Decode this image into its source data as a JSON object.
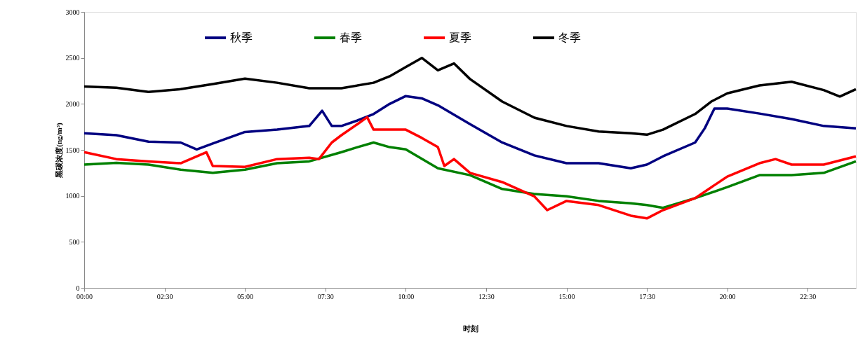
{
  "chart_data": {
    "type": "line",
    "xlabel": "时刻",
    "ylabel": "黑碳浓度(ng/m³)",
    "xlim": [
      0,
      24
    ],
    "ylim": [
      0,
      3000
    ],
    "xticks": [
      {
        "value": 0,
        "label": "00:00"
      },
      {
        "value": 2.5,
        "label": "02:30"
      },
      {
        "value": 5,
        "label": "05:00"
      },
      {
        "value": 7.5,
        "label": "07:30"
      },
      {
        "value": 10,
        "label": "10:00"
      },
      {
        "value": 12.5,
        "label": "12:30"
      },
      {
        "value": 15,
        "label": "15:00"
      },
      {
        "value": 17.5,
        "label": "17:30"
      },
      {
        "value": 20,
        "label": "20:00"
      },
      {
        "value": 22.5,
        "label": "22:30"
      }
    ],
    "yticks": [
      0,
      500,
      1000,
      1500,
      2000,
      2500,
      3000
    ],
    "grid": false,
    "legend": "top",
    "line_style": "solid",
    "marker": "none",
    "series": [
      {
        "name": "秋季",
        "color": "#000080",
        "x": [
          0,
          1,
          2,
          3,
          3.5,
          4,
          5,
          6,
          7,
          7.4,
          7.7,
          8,
          8.5,
          9,
          9.5,
          10,
          10.5,
          11,
          12,
          13,
          14,
          15,
          16,
          17,
          17.5,
          18,
          19,
          19.3,
          19.6,
          20,
          21,
          22,
          23,
          24
        ],
        "values": [
          1680,
          1660,
          1590,
          1580,
          1505,
          1570,
          1695,
          1720,
          1760,
          1925,
          1760,
          1760,
          1820,
          1890,
          2000,
          2085,
          2060,
          1985,
          1780,
          1580,
          1440,
          1355,
          1355,
          1300,
          1340,
          1430,
          1580,
          1735,
          1950,
          1950,
          1895,
          1835,
          1760,
          1735
        ]
      },
      {
        "name": "春季",
        "color": "#008000",
        "x": [
          0,
          1,
          2,
          3,
          4,
          5,
          6,
          7,
          8,
          8.5,
          9,
          9.5,
          10,
          11,
          12,
          13,
          14,
          15,
          16,
          17,
          17.5,
          18,
          19,
          20,
          21,
          22,
          23,
          24
        ],
        "values": [
          1340,
          1360,
          1340,
          1285,
          1250,
          1285,
          1355,
          1375,
          1475,
          1530,
          1580,
          1530,
          1505,
          1300,
          1225,
          1075,
          1020,
          995,
          945,
          920,
          900,
          870,
          975,
          1095,
          1225,
          1225,
          1250,
          1375
        ]
      },
      {
        "name": "夏季",
        "color": "#ff0000",
        "x": [
          0,
          1,
          2,
          3,
          3.8,
          4,
          5,
          6,
          7,
          7.3,
          7.7,
          8,
          8.5,
          8.8,
          9,
          9.5,
          10,
          10.5,
          11,
          11.2,
          11.5,
          12,
          13,
          14,
          14.4,
          15,
          16,
          17,
          17.5,
          18,
          19,
          20,
          21,
          21.5,
          22,
          23,
          24
        ],
        "values": [
          1475,
          1400,
          1375,
          1355,
          1475,
          1325,
          1315,
          1400,
          1415,
          1400,
          1580,
          1660,
          1780,
          1855,
          1720,
          1720,
          1720,
          1630,
          1530,
          1325,
          1400,
          1250,
          1150,
          995,
          845,
          945,
          900,
          785,
          755,
          845,
          975,
          1210,
          1355,
          1400,
          1340,
          1340,
          1430
        ]
      },
      {
        "name": "冬季",
        "color": "#000000",
        "x": [
          0,
          1,
          2,
          3,
          4,
          5,
          6,
          7,
          8,
          9,
          9.5,
          10,
          10.5,
          11,
          11.5,
          12,
          13,
          14,
          15,
          16,
          17,
          17.5,
          18,
          19,
          19.5,
          20,
          21,
          22,
          23,
          23.5,
          24
        ],
        "values": [
          2190,
          2175,
          2130,
          2160,
          2215,
          2275,
          2230,
          2170,
          2170,
          2230,
          2300,
          2400,
          2500,
          2365,
          2440,
          2270,
          2025,
          1850,
          1760,
          1700,
          1680,
          1665,
          1720,
          1890,
          2025,
          2115,
          2200,
          2240,
          2150,
          2080,
          2160
        ]
      }
    ]
  }
}
